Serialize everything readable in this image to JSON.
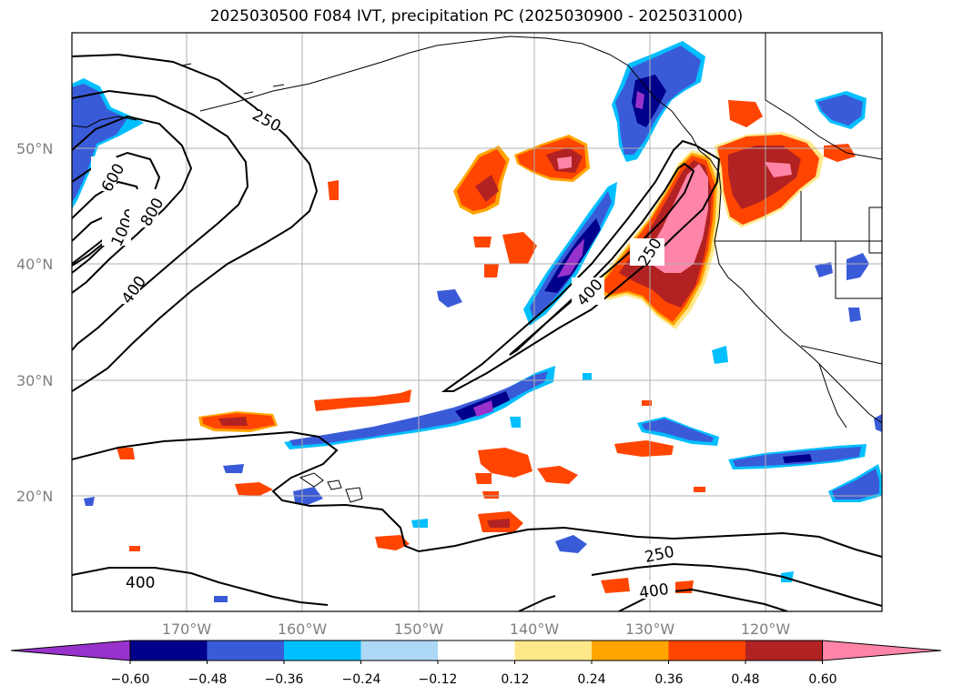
{
  "title": "2025030500 F084 IVT, precipitation PC (2025030900 - 2025031000)",
  "lat_labels": [
    "50°N",
    "40°N",
    "30°N",
    "20°N"
  ],
  "lon_labels": [
    "170°W",
    "160°W",
    "150°W",
    "140°W",
    "130°W",
    "120°W"
  ],
  "contour_labels": [
    "250",
    "600",
    "1000",
    "800",
    "400",
    "250",
    "400",
    "250",
    "400",
    "400"
  ],
  "colorbar": {
    "ticks": [
      "−0.60",
      "−0.48",
      "−0.36",
      "−0.24",
      "−0.12",
      "0.12",
      "0.24",
      "0.36",
      "0.48",
      "0.60"
    ],
    "colors": [
      "#9932cc",
      "#00008b",
      "#3a5bd8",
      "#00bfff",
      "#add8f5",
      "#ffffff",
      "#ffe88a",
      "#ffa500",
      "#ff4500",
      "#b22222",
      "#ff85a8"
    ]
  },
  "palette": {
    "neg_strong": "#00008b",
    "neg_mid": "#3a5bd8",
    "neg_light": "#00bfff",
    "neg_pale": "#add8f5",
    "neg_purple": "#9932cc",
    "pos_pale": "#ffe88a",
    "pos_light": "#ffa500",
    "pos_mid": "#ff4500",
    "pos_strong": "#b22222",
    "pos_pink": "#ff85a8"
  }
}
